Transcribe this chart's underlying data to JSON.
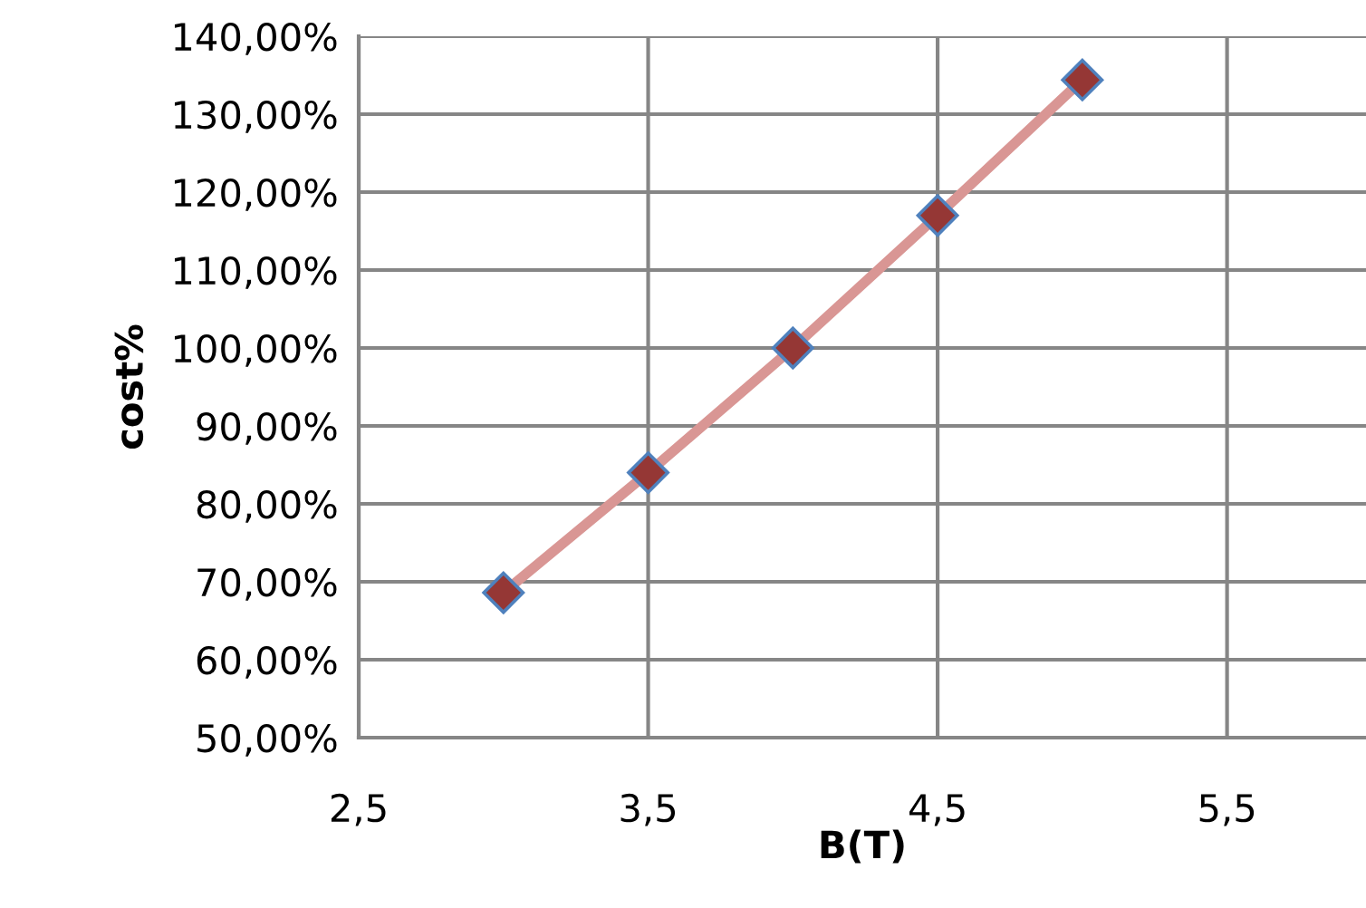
{
  "chart_data": {
    "type": "line",
    "xlabel": "B(T)",
    "ylabel": "cost%",
    "x": [
      3.0,
      3.5,
      4.0,
      4.5,
      5.0
    ],
    "series": [
      {
        "color": "#d99694",
        "values": [
          68.6,
          84.0,
          100.0,
          117.0,
          134.4
        ]
      }
    ],
    "marker": "diamond",
    "line_style": "solid",
    "grid": true,
    "legend": false,
    "xlim": [
      2.5,
      5.98
    ],
    "xticks": [
      {
        "value": 2.5,
        "label": "2,5"
      },
      {
        "value": 3.5,
        "label": "3,5"
      },
      {
        "value": 4.5,
        "label": "4,5"
      },
      {
        "value": 5.5,
        "label": "5,5"
      }
    ],
    "ylim": [
      50,
      140
    ],
    "yticks": [
      {
        "value": 50,
        "label": "50,00%"
      },
      {
        "value": 60,
        "label": "60,00%"
      },
      {
        "value": 70,
        "label": "70,00%"
      },
      {
        "value": 80,
        "label": "80,00%"
      },
      {
        "value": 90,
        "label": "90,00%"
      },
      {
        "value": 100,
        "label": "100,00%"
      },
      {
        "value": 110,
        "label": "110,00%"
      },
      {
        "value": 120,
        "label": "120,00%"
      },
      {
        "value": 130,
        "label": "130,00%"
      },
      {
        "value": 140,
        "label": "140,00%"
      }
    ]
  }
}
